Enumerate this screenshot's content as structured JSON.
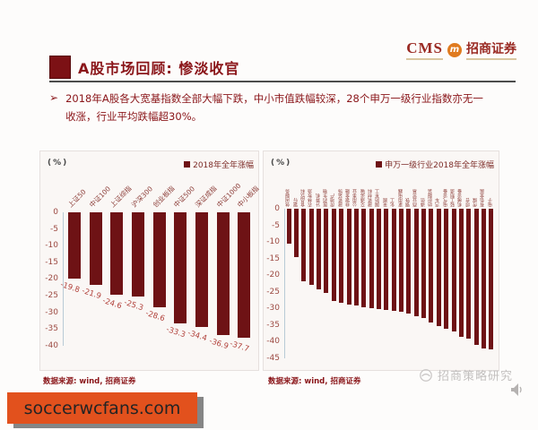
{
  "logo": {
    "cms": "CMS",
    "badge_letter": "m",
    "company": "招商证券"
  },
  "header": {
    "title": "A股市场回顾: 惨淡收官"
  },
  "bullet": {
    "marker": "➢",
    "text": "2018年A股各大宽基指数全部大幅下跌，中小市值跌幅较深，28个申万一级行业指数亦无一收涨，行业平均跌幅超30%。"
  },
  "chart_data": [
    {
      "type": "bar",
      "unit_label": "(%)",
      "legend": "2018年全年涨幅",
      "categories": [
        "上证50",
        "中证100",
        "上证综指",
        "沪深300",
        "创业板指",
        "中证500",
        "深证成指",
        "中证1000",
        "中小板指"
      ],
      "values": [
        -19.8,
        -21.9,
        -24.6,
        -25.3,
        -28.6,
        -33.3,
        -34.4,
        -36.9,
        -37.7
      ],
      "value_labels": [
        "-19.8",
        "-21.9",
        "-24.6",
        "-25.3",
        "-28.6",
        "-33.3",
        "-34.4",
        "-36.9",
        "-37.7"
      ],
      "ylim": [
        -40,
        0
      ],
      "ytick_step": 5,
      "grid": false,
      "legend_position": "top-right",
      "caption": "数据来源: wind, 招商证券"
    },
    {
      "type": "bar",
      "unit_label": "(%)",
      "legend": "申万一级行业2018年全年涨幅",
      "categories": [
        "休闲服务",
        "银行",
        "食品饮料",
        "农林牧渔",
        "计算机",
        "医药生物",
        "房地产",
        "建筑装饰",
        "非银金融",
        "公用事业",
        "交通运输",
        "建筑材料",
        "国防军工",
        "采掘",
        "化工",
        "家用电器",
        "钢铁",
        "商业贸易",
        "通信",
        "纺织服装",
        "汽车",
        "电气设备",
        "轻工制造",
        "机械设备",
        "综合",
        "传媒",
        "有色金属",
        "电子"
      ],
      "values": [
        -10.5,
        -14.7,
        -22.0,
        -22.9,
        -24.4,
        -25.4,
        -27.9,
        -28.5,
        -29.0,
        -29.3,
        -29.6,
        -30.0,
        -30.3,
        -30.6,
        -30.9,
        -31.2,
        -31.5,
        -32.4,
        -33.0,
        -34.4,
        -35.4,
        -36.1,
        -37.1,
        -38.6,
        -39.2,
        -41.0,
        -42.2,
        -42.5
      ],
      "ylim": [
        -45,
        0
      ],
      "ytick_step": 5,
      "grid": false,
      "legend_position": "top-right",
      "caption": "数据来源: wind, 招商证券"
    }
  ],
  "watermark": {
    "text": "招商策略研究"
  },
  "banner": {
    "text": "soccerwcfans.com"
  },
  "colors": {
    "bar": "#6e1215",
    "title_red": "#8a1519",
    "banner_orange": "#e2511d",
    "logo_orange": "#e07b1f",
    "watermark_gray": "#c3c0bf"
  }
}
